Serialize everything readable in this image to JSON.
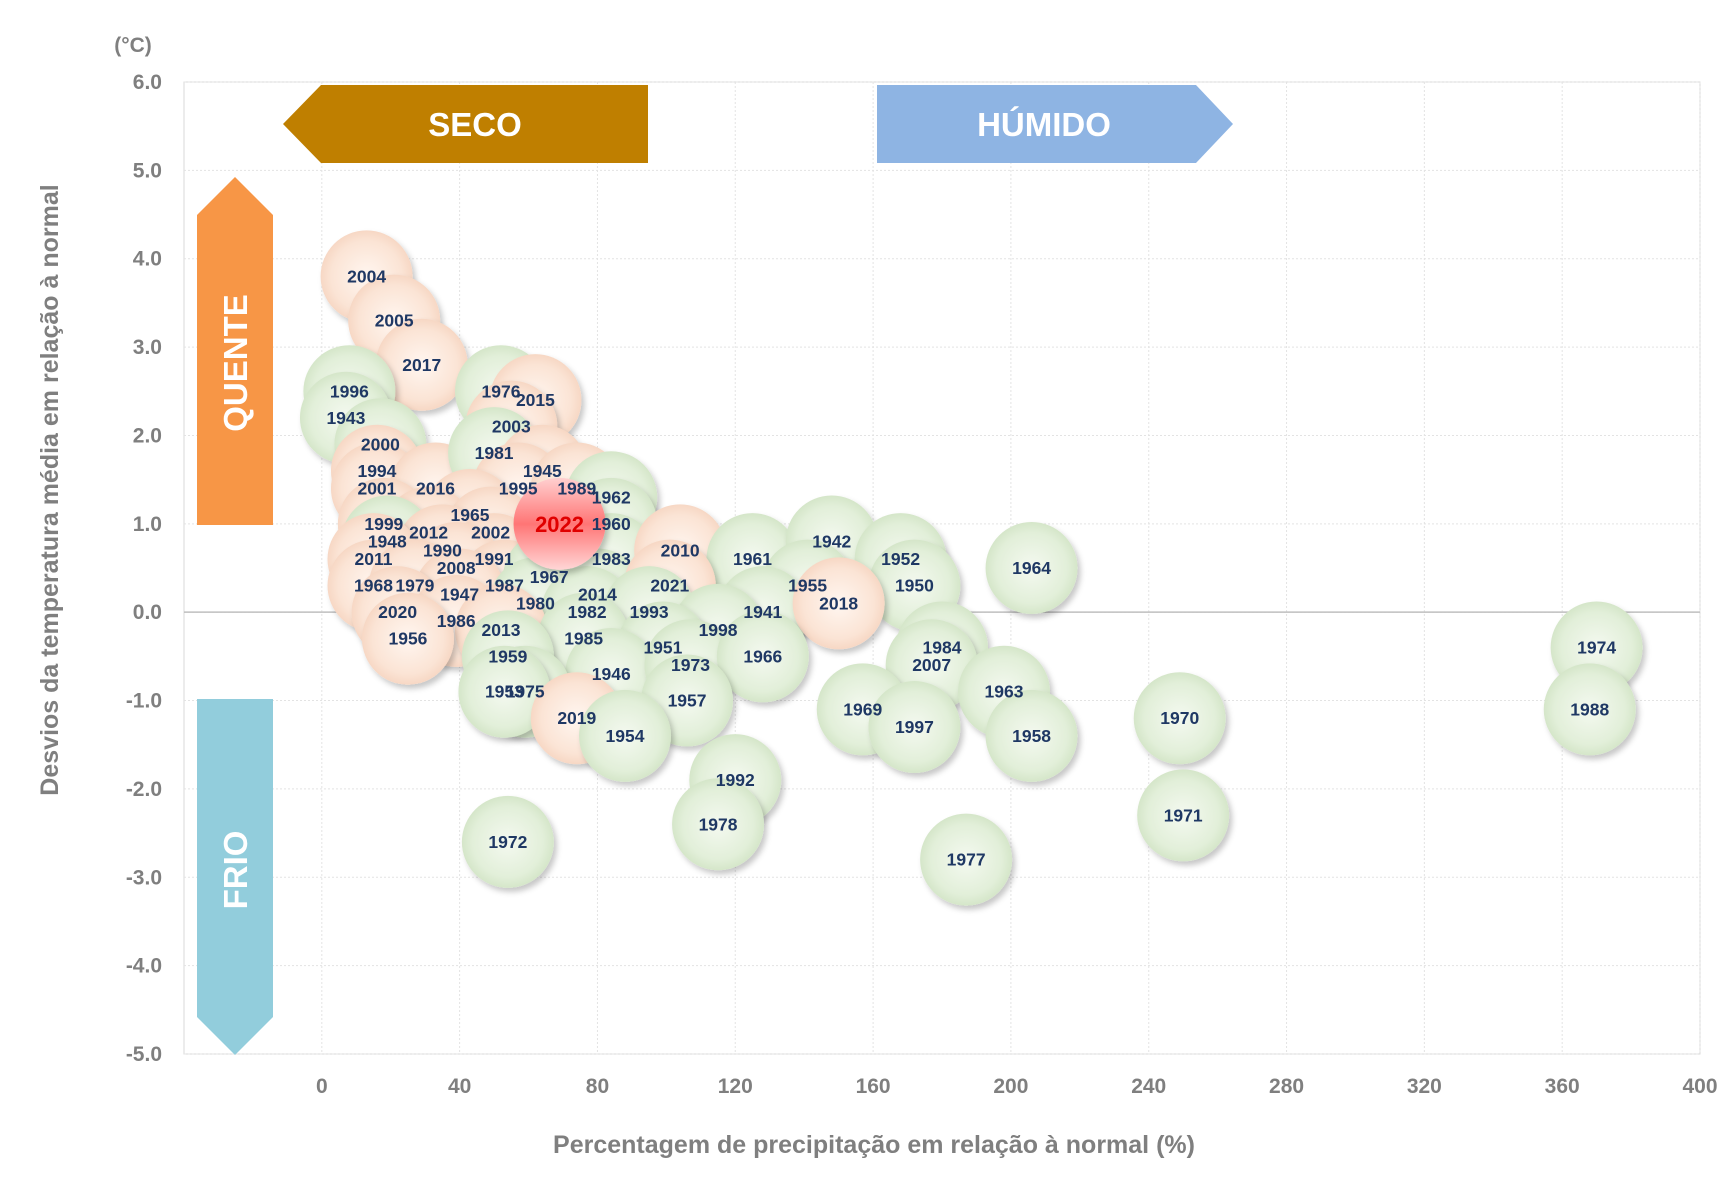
{
  "chart_data": {
    "type": "scatter",
    "xlabel": "Percentagem de precipitação em relação à normal (%)",
    "ylabel": "Desvios da temperatura média em relação à normal",
    "yunit": "(°C)",
    "xlim": [
      -40,
      400
    ],
    "ylim": [
      -5,
      6
    ],
    "x_ticks": [
      "0",
      "40",
      "80",
      "120",
      "160",
      "200",
      "240",
      "280",
      "320",
      "360",
      "400"
    ],
    "y_ticks": [
      "6.0",
      "5.0",
      "4.0",
      "3.0",
      "2.0",
      "1.0",
      "0.0",
      "-1.0",
      "-2.0",
      "-3.0",
      "-4.0",
      "-5.0"
    ],
    "grid": true,
    "quadrant_labels": {
      "dry": "SECO",
      "wet": "HÚMIDO",
      "hot": "QUENTE",
      "cold": "FRIO"
    },
    "colors": {
      "warm_bubble": "#fbe4d5",
      "cool_bubble": "#e2efd9",
      "highlight_bubble": "#ff7575",
      "dry_arrow": "#bf7f00",
      "wet_arrow": "#8eb4e3",
      "hot_arrow": "#f79646",
      "cold_arrow": "#92cddc"
    },
    "highlight": "2022",
    "points": [
      {
        "year": "2004",
        "x": 13,
        "y": 3.8,
        "c": "w"
      },
      {
        "year": "2005",
        "x": 21,
        "y": 3.3,
        "c": "w"
      },
      {
        "year": "2017",
        "x": 29,
        "y": 2.8,
        "c": "w"
      },
      {
        "year": "1996",
        "x": 8,
        "y": 2.5,
        "c": "g"
      },
      {
        "year": "1943",
        "x": 7,
        "y": 2.2,
        "c": "g"
      },
      {
        "year": "2000",
        "x": 17,
        "y": 1.9,
        "c": "g"
      },
      {
        "year": "1994",
        "x": 16,
        "y": 1.6,
        "c": "w"
      },
      {
        "year": "2001",
        "x": 16,
        "y": 1.4,
        "c": "w"
      },
      {
        "year": "2016",
        "x": 33,
        "y": 1.4,
        "c": "w"
      },
      {
        "year": "1976",
        "x": 52,
        "y": 2.5,
        "c": "g"
      },
      {
        "year": "2015",
        "x": 62,
        "y": 2.4,
        "c": "w"
      },
      {
        "year": "2003",
        "x": 55,
        "y": 2.1,
        "c": "w"
      },
      {
        "year": "1981",
        "x": 50,
        "y": 1.8,
        "c": "g"
      },
      {
        "year": "1945",
        "x": 64,
        "y": 1.6,
        "c": "w"
      },
      {
        "year": "1995",
        "x": 57,
        "y": 1.4,
        "c": "w"
      },
      {
        "year": "1989",
        "x": 74,
        "y": 1.4,
        "c": "w"
      },
      {
        "year": "1962",
        "x": 84,
        "y": 1.3,
        "c": "g"
      },
      {
        "year": "1965",
        "x": 43,
        "y": 1.1,
        "c": "w"
      },
      {
        "year": "1999",
        "x": 18,
        "y": 1.0,
        "c": "w"
      },
      {
        "year": "2012",
        "x": 31,
        "y": 0.9,
        "c": "w"
      },
      {
        "year": "2002",
        "x": 49,
        "y": 0.9,
        "c": "w"
      },
      {
        "year": "1960",
        "x": 84,
        "y": 1.0,
        "c": "g"
      },
      {
        "year": "1948",
        "x": 19,
        "y": 0.8,
        "c": "g"
      },
      {
        "year": "1990",
        "x": 35,
        "y": 0.7,
        "c": "w"
      },
      {
        "year": "1991",
        "x": 50,
        "y": 0.6,
        "c": "w"
      },
      {
        "year": "2011",
        "x": 15,
        "y": 0.6,
        "c": "w"
      },
      {
        "year": "2008",
        "x": 39,
        "y": 0.5,
        "c": "w"
      },
      {
        "year": "1983",
        "x": 84,
        "y": 0.6,
        "c": "g"
      },
      {
        "year": "2010",
        "x": 104,
        "y": 0.7,
        "c": "w"
      },
      {
        "year": "1961",
        "x": 125,
        "y": 0.6,
        "c": "g"
      },
      {
        "year": "1942",
        "x": 148,
        "y": 0.8,
        "c": "g"
      },
      {
        "year": "1952",
        "x": 168,
        "y": 0.6,
        "c": "g"
      },
      {
        "year": "1964",
        "x": 206,
        "y": 0.5,
        "c": "g"
      },
      {
        "year": "1968",
        "x": 15,
        "y": 0.3,
        "c": "w"
      },
      {
        "year": "1979",
        "x": 27,
        "y": 0.3,
        "c": "w"
      },
      {
        "year": "1987",
        "x": 53,
        "y": 0.3,
        "c": "w"
      },
      {
        "year": "1967",
        "x": 66,
        "y": 0.4,
        "c": "g"
      },
      {
        "year": "1947",
        "x": 40,
        "y": 0.2,
        "c": "w"
      },
      {
        "year": "2014",
        "x": 80,
        "y": 0.2,
        "c": "g"
      },
      {
        "year": "2021",
        "x": 101,
        "y": 0.3,
        "c": "w"
      },
      {
        "year": "1955",
        "x": 141,
        "y": 0.3,
        "c": "g"
      },
      {
        "year": "1950",
        "x": 172,
        "y": 0.3,
        "c": "g"
      },
      {
        "year": "2020",
        "x": 22,
        "y": 0.0,
        "c": "w"
      },
      {
        "year": "1980",
        "x": 62,
        "y": 0.1,
        "c": "g"
      },
      {
        "year": "1982",
        "x": 77,
        "y": 0.0,
        "c": "g"
      },
      {
        "year": "1993",
        "x": 95,
        "y": 0.0,
        "c": "g"
      },
      {
        "year": "1941",
        "x": 128,
        "y": 0.0,
        "c": "g"
      },
      {
        "year": "2018",
        "x": 150,
        "y": 0.1,
        "c": "w"
      },
      {
        "year": "1986",
        "x": 39,
        "y": -0.1,
        "c": "w"
      },
      {
        "year": "2013",
        "x": 52,
        "y": -0.2,
        "c": "w"
      },
      {
        "year": "1956",
        "x": 25,
        "y": -0.3,
        "c": "w"
      },
      {
        "year": "1998",
        "x": 115,
        "y": -0.2,
        "c": "g"
      },
      {
        "year": "1985",
        "x": 76,
        "y": -0.3,
        "c": "g"
      },
      {
        "year": "1951",
        "x": 99,
        "y": -0.4,
        "c": "g"
      },
      {
        "year": "1959",
        "x": 54,
        "y": -0.5,
        "c": "g"
      },
      {
        "year": "1946",
        "x": 84,
        "y": -0.7,
        "c": "g"
      },
      {
        "year": "1973",
        "x": 107,
        "y": -0.6,
        "c": "g"
      },
      {
        "year": "1966",
        "x": 128,
        "y": -0.5,
        "c": "g"
      },
      {
        "year": "1984",
        "x": 180,
        "y": -0.4,
        "c": "g"
      },
      {
        "year": "2007",
        "x": 177,
        "y": -0.6,
        "c": "g"
      },
      {
        "year": "1975",
        "x": 59,
        "y": -0.9,
        "c": "g"
      },
      {
        "year": "1953",
        "x": 53,
        "y": -0.9,
        "c": "g"
      },
      {
        "year": "2019",
        "x": 74,
        "y": -1.2,
        "c": "w"
      },
      {
        "year": "1957",
        "x": 106,
        "y": -1.0,
        "c": "g"
      },
      {
        "year": "1969",
        "x": 157,
        "y": -1.1,
        "c": "g"
      },
      {
        "year": "1963",
        "x": 198,
        "y": -0.9,
        "c": "g"
      },
      {
        "year": "1997",
        "x": 172,
        "y": -1.3,
        "c": "g"
      },
      {
        "year": "1958",
        "x": 206,
        "y": -1.4,
        "c": "g"
      },
      {
        "year": "1954",
        "x": 88,
        "y": -1.4,
        "c": "g"
      },
      {
        "year": "1970",
        "x": 249,
        "y": -1.2,
        "c": "g"
      },
      {
        "year": "1974",
        "x": 370,
        "y": -0.4,
        "c": "g"
      },
      {
        "year": "1988",
        "x": 368,
        "y": -1.1,
        "c": "g"
      },
      {
        "year": "1992",
        "x": 120,
        "y": -1.9,
        "c": "g"
      },
      {
        "year": "1978",
        "x": 115,
        "y": -2.4,
        "c": "g"
      },
      {
        "year": "1971",
        "x": 250,
        "y": -2.3,
        "c": "g"
      },
      {
        "year": "1972",
        "x": 54,
        "y": -2.6,
        "c": "g"
      },
      {
        "year": "1977",
        "x": 187,
        "y": -2.8,
        "c": "g"
      },
      {
        "year": "2022",
        "x": 69,
        "y": 1.0,
        "c": "h"
      }
    ]
  }
}
